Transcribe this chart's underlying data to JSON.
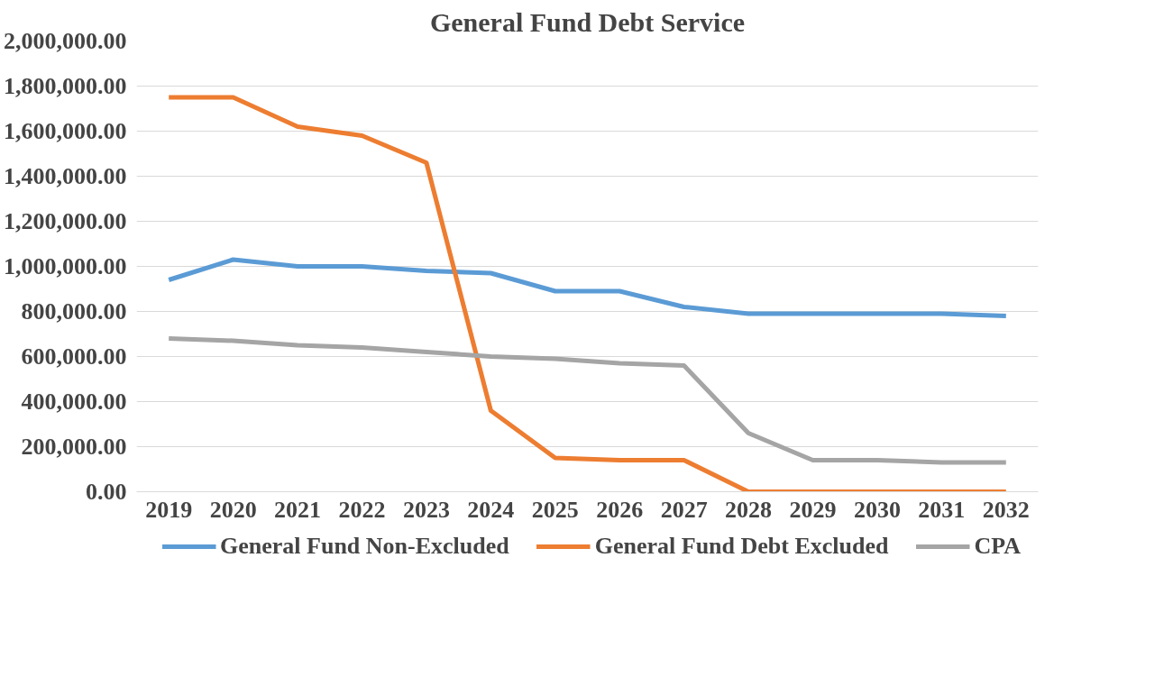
{
  "chart_data": {
    "type": "line",
    "title": "General Fund Debt Service",
    "categories": [
      "2019",
      "2020",
      "2021",
      "2022",
      "2023",
      "2024",
      "2025",
      "2026",
      "2027",
      "2028",
      "2029",
      "2030",
      "2031",
      "2032"
    ],
    "series": [
      {
        "name": "General Fund Non-Excluded",
        "color": "#5b9bd5",
        "values": [
          940000,
          1030000,
          1000000,
          1000000,
          980000,
          970000,
          890000,
          890000,
          820000,
          790000,
          790000,
          790000,
          790000,
          780000
        ]
      },
      {
        "name": "General Fund Debt Excluded",
        "color": "#ed7d31",
        "values": [
          1750000,
          1750000,
          1620000,
          1580000,
          1460000,
          360000,
          150000,
          140000,
          140000,
          0,
          0,
          0,
          0,
          0
        ]
      },
      {
        "name": "CPA",
        "color": "#a5a5a5",
        "values": [
          680000,
          670000,
          650000,
          640000,
          620000,
          600000,
          590000,
          570000,
          560000,
          260000,
          140000,
          140000,
          130000,
          130000
        ]
      }
    ],
    "ylim": [
      0,
      2000000
    ],
    "yticks": [
      {
        "value": 0,
        "label": "0.00"
      },
      {
        "value": 200000,
        "label": "200,000.00"
      },
      {
        "value": 400000,
        "label": "400,000.00"
      },
      {
        "value": 600000,
        "label": "600,000.00"
      },
      {
        "value": 800000,
        "label": "800,000.00"
      },
      {
        "value": 1000000,
        "label": "1,000,000.00"
      },
      {
        "value": 1200000,
        "label": "1,200,000.00"
      },
      {
        "value": 1400000,
        "label": "1,400,000.00"
      },
      {
        "value": 1600000,
        "label": "1,600,000.00"
      },
      {
        "value": 1800000,
        "label": "1,800,000.00"
      },
      {
        "value": 2000000,
        "label": "2,000,000.00"
      }
    ],
    "grid": "y",
    "legend": "bottom",
    "marker": "none",
    "line_style": "solid"
  }
}
